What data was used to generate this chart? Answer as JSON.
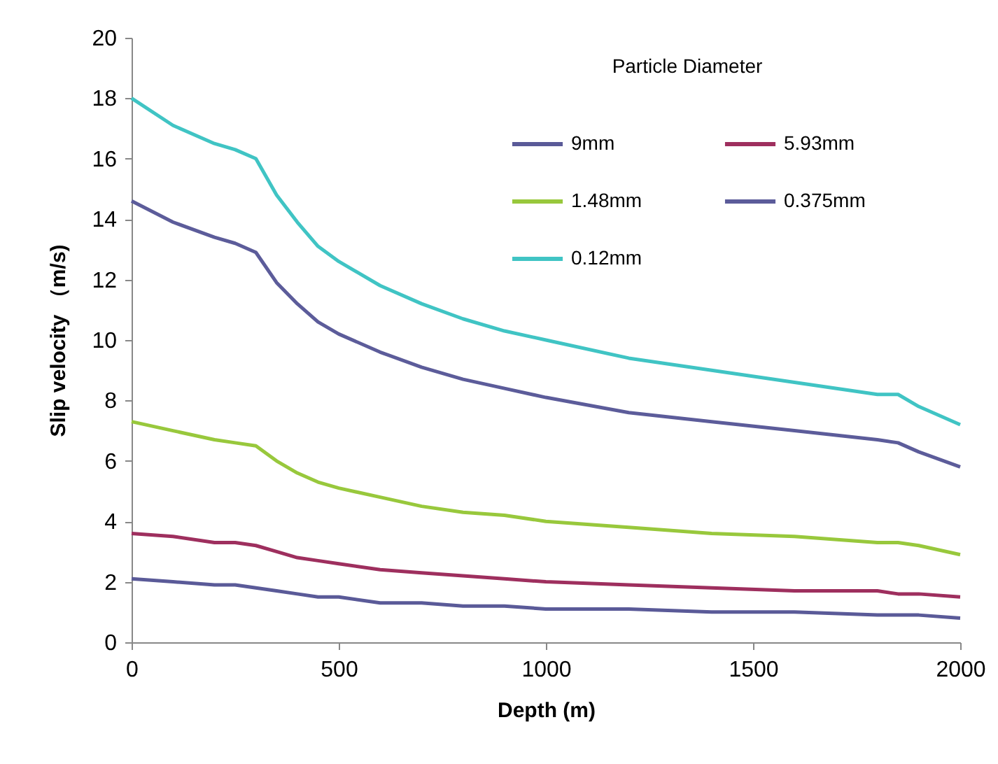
{
  "chart_data": {
    "type": "line",
    "xlabel": "Depth (m)",
    "ylabel": "Slip velocity （m/s)",
    "legend_title": "Particle Diameter",
    "x": [
      0,
      100,
      200,
      250,
      300,
      350,
      400,
      450,
      500,
      600,
      700,
      800,
      900,
      1000,
      1200,
      1400,
      1600,
      1800,
      1850,
      1900,
      2000
    ],
    "series": [
      {
        "name": "9mm",
        "color": "#5a5a98",
        "values": [
          2.1,
          2.0,
          1.9,
          1.9,
          1.8,
          1.7,
          1.6,
          1.5,
          1.5,
          1.3,
          1.3,
          1.2,
          1.2,
          1.1,
          1.1,
          1.0,
          1.0,
          0.9,
          0.9,
          0.9,
          0.8
        ]
      },
      {
        "name": "5.93mm",
        "color": "#9e2f5e",
        "values": [
          3.6,
          3.5,
          3.3,
          3.3,
          3.2,
          3.0,
          2.8,
          2.7,
          2.6,
          2.4,
          2.3,
          2.2,
          2.1,
          2.0,
          1.9,
          1.8,
          1.7,
          1.7,
          1.6,
          1.6,
          1.5
        ]
      },
      {
        "name": "1.48mm",
        "color": "#98c83c",
        "values": [
          7.3,
          7.0,
          6.7,
          6.6,
          6.5,
          6.0,
          5.6,
          5.3,
          5.1,
          4.8,
          4.5,
          4.3,
          4.2,
          4.0,
          3.8,
          3.6,
          3.5,
          3.3,
          3.3,
          3.2,
          2.9
        ]
      },
      {
        "name": "0.375mm",
        "color": "#5c5c9a",
        "values": [
          14.6,
          13.9,
          13.4,
          13.2,
          12.9,
          11.9,
          11.2,
          10.6,
          10.2,
          9.6,
          9.1,
          8.7,
          8.4,
          8.1,
          7.6,
          7.3,
          7.0,
          6.7,
          6.6,
          6.3,
          5.8
        ]
      },
      {
        "name": "0.12mm",
        "color": "#40c4c4",
        "values": [
          18.0,
          17.1,
          16.5,
          16.3,
          16.0,
          14.8,
          13.9,
          13.1,
          12.6,
          11.8,
          11.2,
          10.7,
          10.3,
          10.0,
          9.4,
          9.0,
          8.6,
          8.2,
          8.2,
          7.8,
          7.2
        ]
      }
    ],
    "xlim": [
      0,
      2000
    ],
    "xticks": [
      0,
      500,
      1000,
      1500,
      2000
    ],
    "ylim": [
      0,
      20
    ],
    "yticks": [
      0,
      2,
      4,
      6,
      8,
      10,
      12,
      14,
      16,
      18,
      20
    ],
    "legend": "top right",
    "line_style": "solid"
  }
}
